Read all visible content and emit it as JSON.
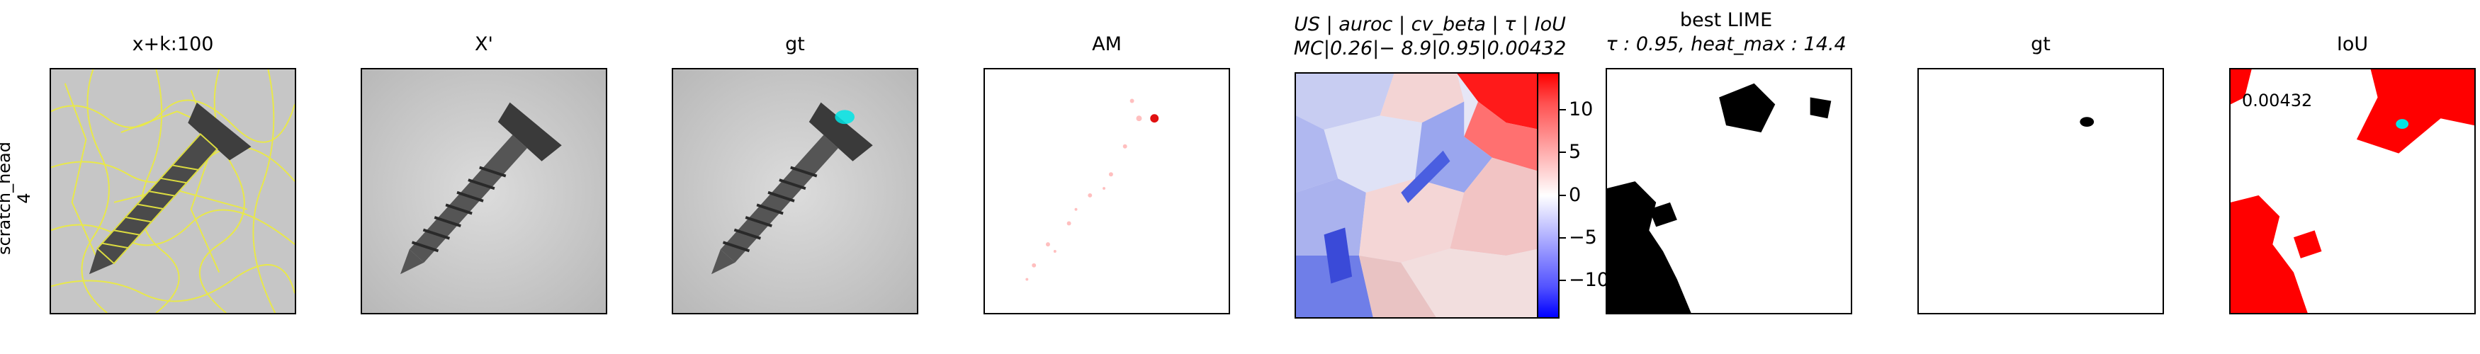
{
  "row": {
    "label_line1": "scratch_head",
    "label_line2": "4"
  },
  "panels": [
    {
      "title": "x+k:100"
    },
    {
      "title": "X'"
    },
    {
      "title": "gt"
    },
    {
      "title": "AM"
    },
    {
      "title_line1": "US | auroc | cv_beta | τ | IoU",
      "title_line2": "MC|0.26|− 8.9|0.95|0.00432"
    },
    {
      "title_line1": "best LIME",
      "title_line2": "τ : 0.95, heat_max : 14.4"
    },
    {
      "title": "gt"
    },
    {
      "title": "IoU",
      "annotation": "0.00432"
    }
  ],
  "colorbar": {
    "ticks": [
      "10",
      "5",
      "0",
      "−5",
      "−10"
    ],
    "tick_values": [
      10,
      5,
      0,
      -5,
      -10
    ],
    "range": [
      -14.4,
      14.4
    ]
  },
  "colors": {
    "heat_positive": "#ff0000",
    "heat_negative": "#0000ff",
    "gt_mask": "#00e5e5",
    "superpixel_outline": "#e8e84a",
    "screw_gray": "#555555"
  }
}
